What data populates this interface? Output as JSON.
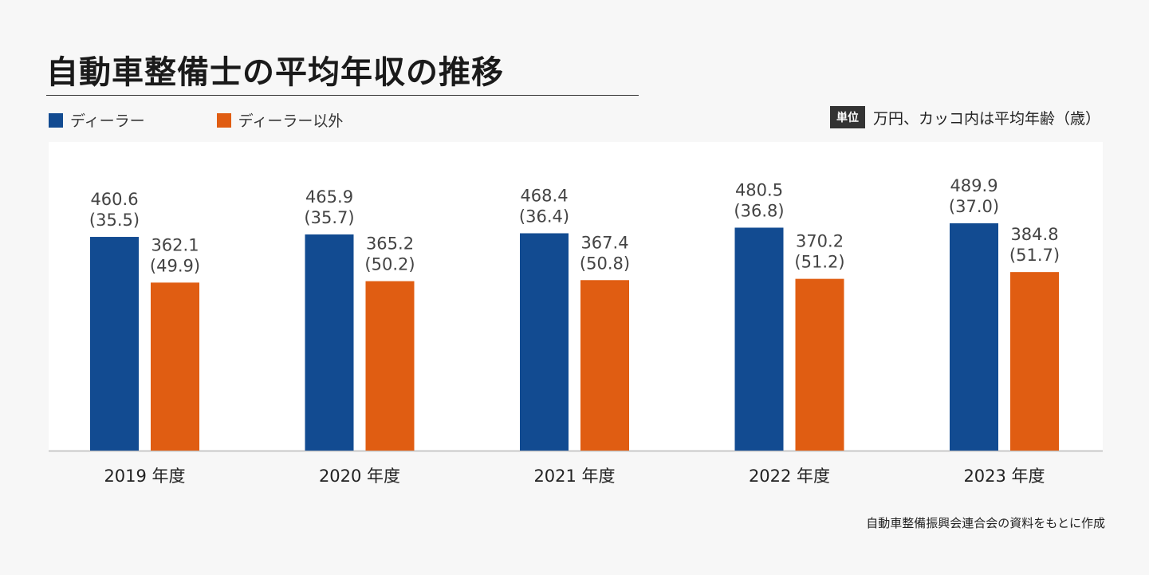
{
  "title": "自動車整備士の平均年収の推移",
  "legend": [
    {
      "label": "ディーラー",
      "color": "#124b91"
    },
    {
      "label": "ディーラー以外",
      "color": "#e05d12"
    }
  ],
  "unit": {
    "badge": "単位",
    "text": "万円、カッコ内は平均年齢（歳）"
  },
  "source": "自動車整備振興会連合会の資料をもとに作成",
  "chart_data": {
    "type": "bar",
    "title": "自動車整備士の平均年収の推移",
    "categories": [
      "2019 年度",
      "2020 年度",
      "2021 年度",
      "2022 年度",
      "2023 年度"
    ],
    "series": [
      {
        "name": "ディーラー",
        "color": "#124b91",
        "values": [
          460.6,
          465.9,
          468.4,
          480.5,
          489.9
        ],
        "ages": [
          "(35.5)",
          "(35.7)",
          "(36.4)",
          "(36.8)",
          "(37.0)"
        ],
        "value_labels": [
          "460.6",
          "465.9",
          "468.4",
          "480.5",
          "489.9"
        ]
      },
      {
        "name": "ディーラー以外",
        "color": "#e05d12",
        "values": [
          362.1,
          365.2,
          367.4,
          370.2,
          384.8
        ],
        "ages": [
          "(49.9)",
          "(50.2)",
          "(50.8)",
          "(51.2)",
          "(51.7)"
        ],
        "value_labels": [
          "362.1",
          "365.2",
          "367.4",
          "370.2",
          "384.8"
        ]
      }
    ],
    "xlabel": "",
    "ylabel": "",
    "ylim": [
      0,
      535
    ]
  }
}
